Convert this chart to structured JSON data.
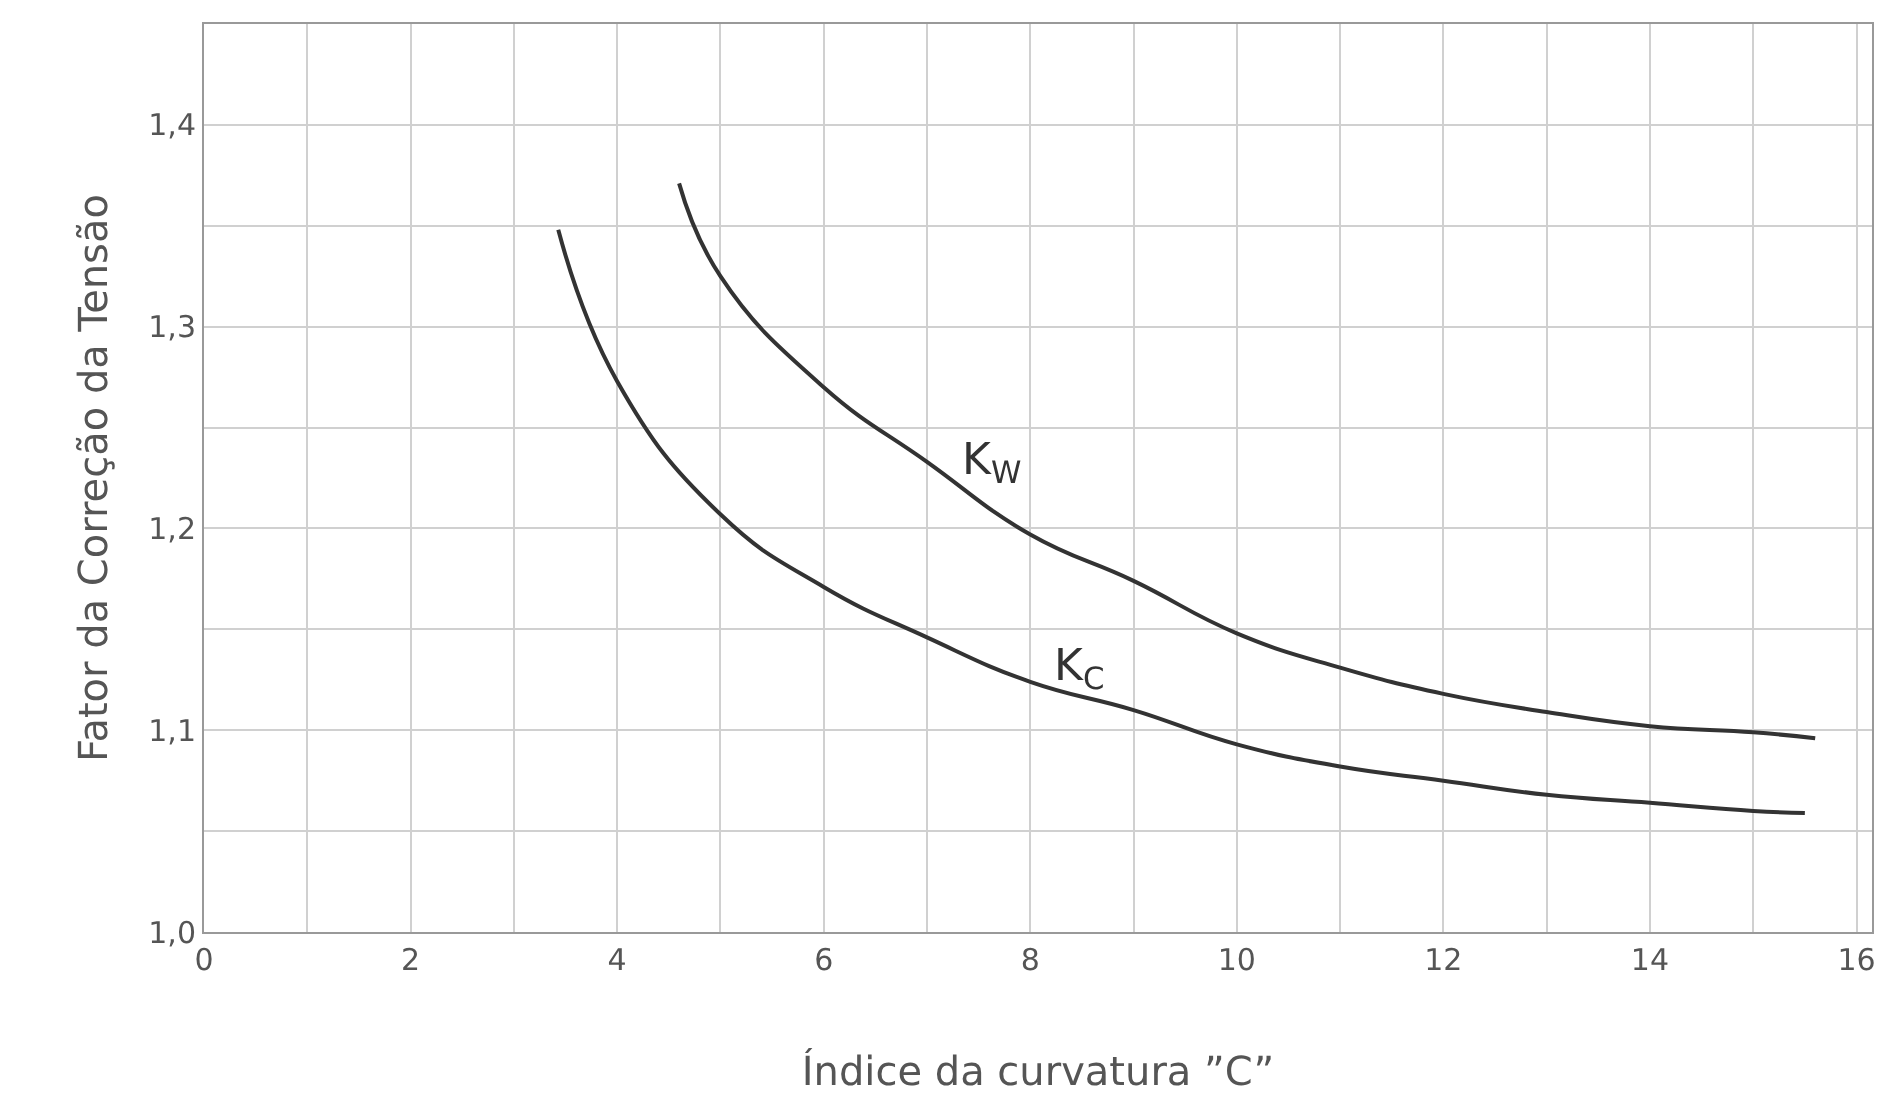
{
  "chart_data": {
    "type": "line",
    "xlabel": "Índice da curvatura ”C”",
    "ylabel": "Fator da Correção da Tensão",
    "xlim": [
      0,
      16.15
    ],
    "ylim": [
      1.0,
      1.45
    ],
    "xticks": [
      0,
      {
        "value": 1,
        "label": null
      },
      2,
      {
        "value": 3,
        "label": null
      },
      4,
      {
        "value": 5,
        "label": null
      },
      6,
      {
        "value": 7,
        "label": null
      },
      8,
      {
        "value": 9,
        "label": null
      },
      10,
      {
        "value": 11,
        "label": null
      },
      12,
      {
        "value": 13,
        "label": null
      },
      14,
      {
        "value": 15,
        "label": null
      },
      16
    ],
    "yticks": [
      {
        "value": 1.0,
        "label": "1,0"
      },
      {
        "value": 1.05,
        "label": null
      },
      {
        "value": 1.1,
        "label": "1,1"
      },
      {
        "value": 1.15,
        "label": null
      },
      {
        "value": 1.2,
        "label": "1,2"
      },
      {
        "value": 1.25,
        "label": null
      },
      {
        "value": 1.3,
        "label": "1,3"
      },
      {
        "value": 1.35,
        "label": null
      },
      {
        "value": 1.4,
        "label": "1,4"
      },
      {
        "value": 1.45,
        "label": null
      }
    ],
    "grid": true,
    "marker": "none",
    "line_style": "solid",
    "series": [
      {
        "color": "#333333",
        "x": [
          4.6,
          5,
          6,
          7,
          8,
          9,
          10,
          11,
          12,
          13,
          14,
          15,
          15.6
        ],
        "values": [
          1.371,
          1.325,
          1.27,
          1.233,
          1.197,
          1.174,
          1.148,
          1.131,
          1.118,
          1.109,
          1.102,
          1.099,
          1.096
        ]
      },
      {
        "color": "#333333",
        "x": [
          3.43,
          4,
          5,
          6,
          7,
          8,
          9,
          10,
          11,
          12,
          13,
          14,
          15,
          15.5
        ],
        "values": [
          1.348,
          1.273,
          1.207,
          1.171,
          1.146,
          1.124,
          1.11,
          1.093,
          1.082,
          1.075,
          1.068,
          1.064,
          1.06,
          1.059
        ]
      }
    ],
    "annotations": [
      {
        "text": "K$_{W}$",
        "x": 7.3,
        "y": 1.222
      },
      {
        "text": "K$_{C}$",
        "x": 8.2,
        "y": 1.12
      }
    ]
  }
}
